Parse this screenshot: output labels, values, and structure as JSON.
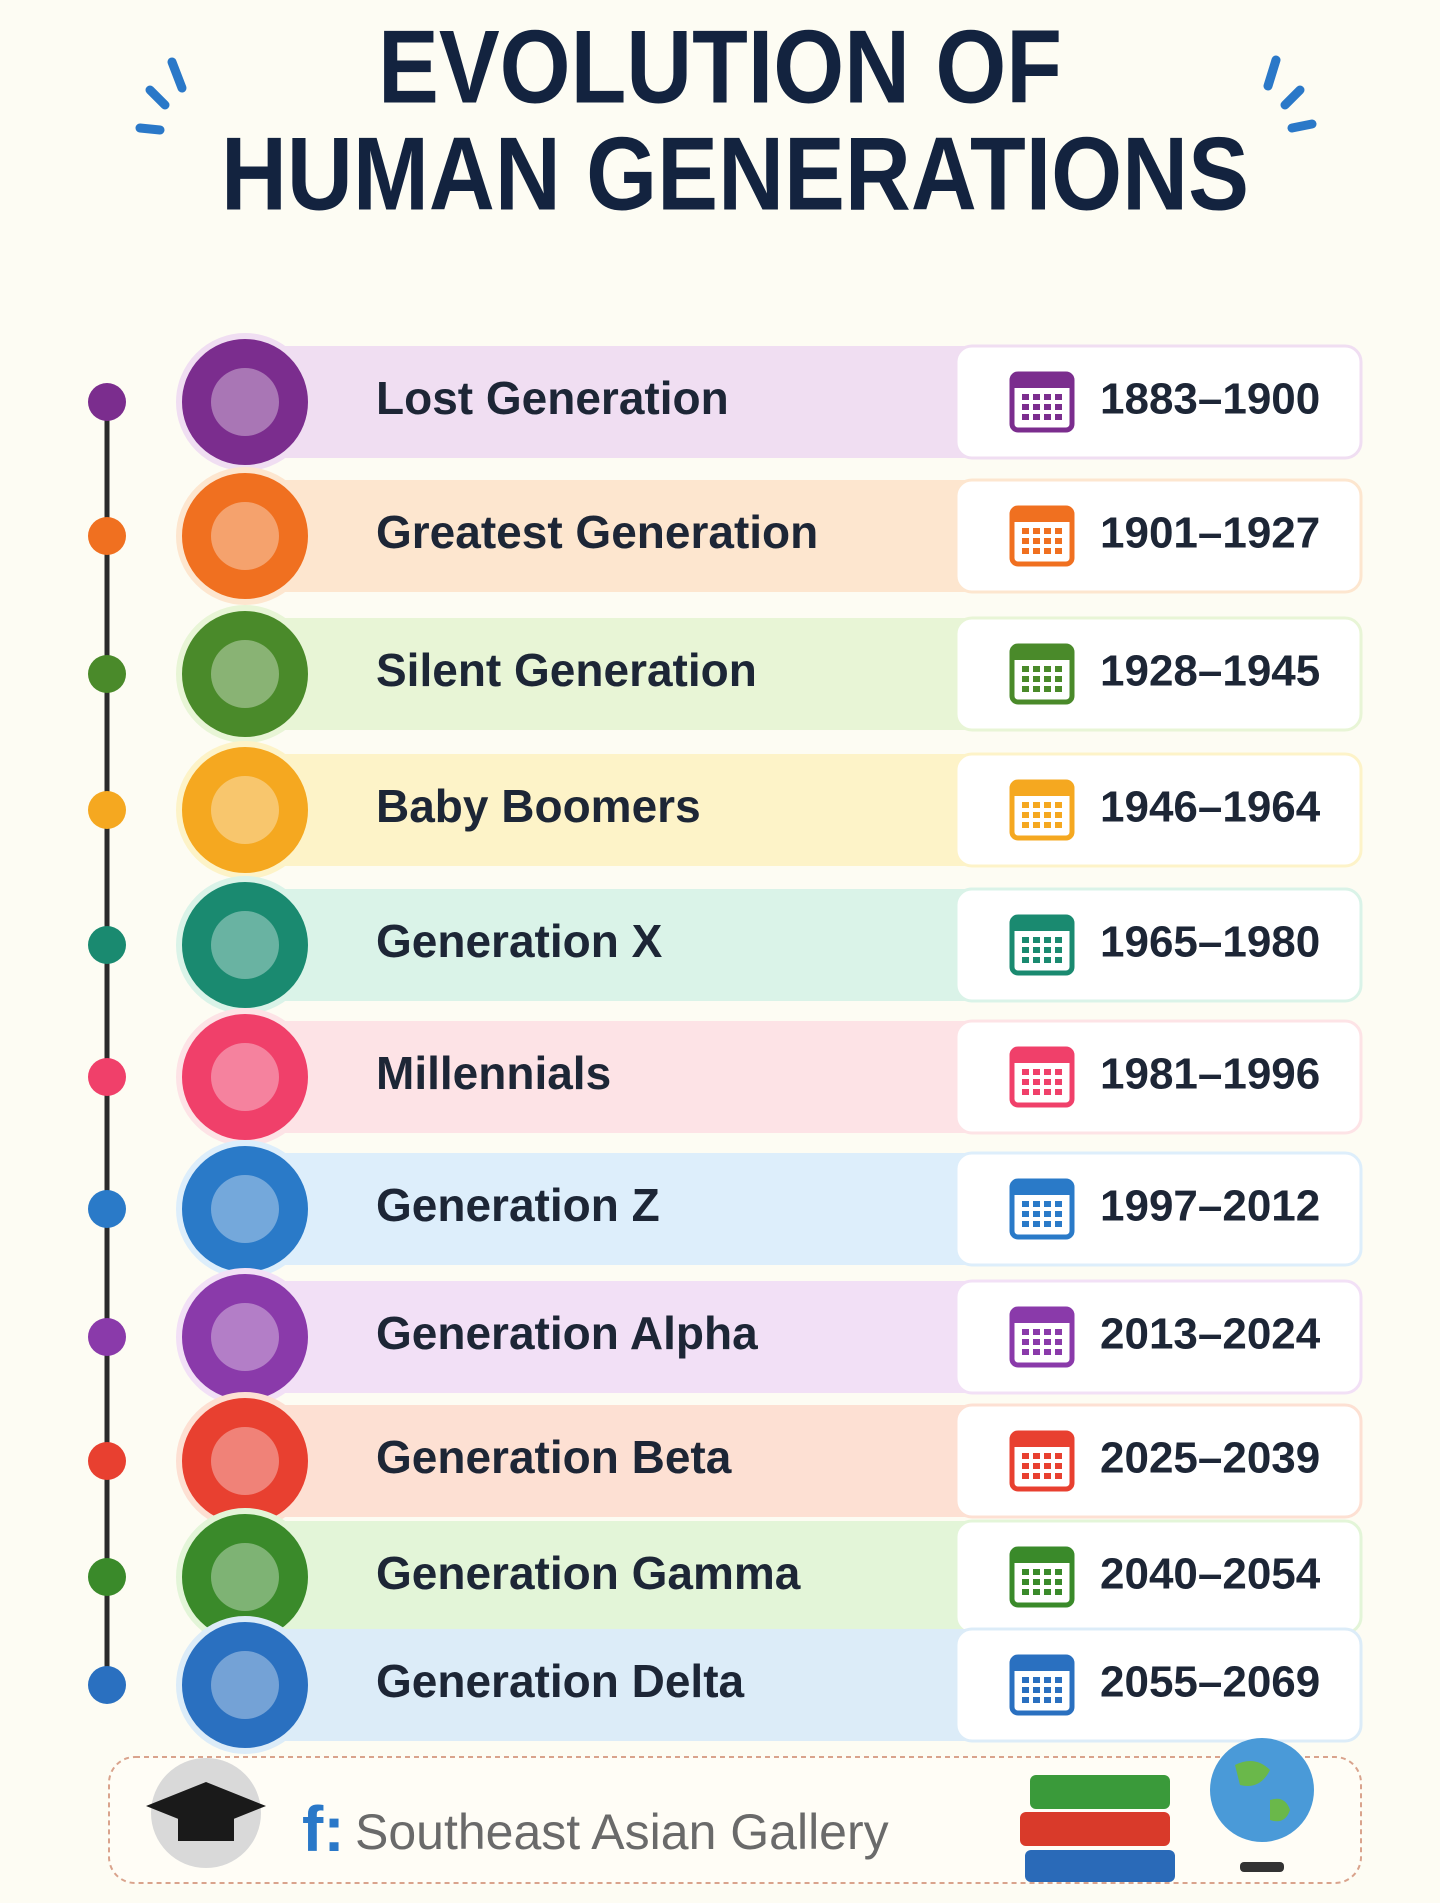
{
  "header": {
    "title": [
      "EVOLUTION OF",
      "HUMAN GENERATIONS"
    ]
  },
  "generations": [
    {
      "name": "Lost Generation",
      "years": "1883–1900"
    },
    {
      "name": "Greatest Generation",
      "years": "1901–1927"
    },
    {
      "name": "Silent Generation",
      "years": "1928–1945"
    },
    {
      "name": "Baby Boomers",
      "years": "1946–1964"
    },
    {
      "name": "Generation X",
      "years": "1965–1980"
    },
    {
      "name": "Millennials",
      "years": "1981–1996"
    },
    {
      "name": "Generation Z",
      "years": "1997–2012"
    },
    {
      "name": "Generation Alpha",
      "years": "2013–2024"
    },
    {
      "name": "Generation Beta",
      "years": "2025–2039"
    },
    {
      "name": "Generation Gamma",
      "years": "2040–2054"
    },
    {
      "name": "Generation Delta",
      "years": "2055–2069"
    }
  ],
  "footer": {
    "prefix": "f:",
    "text": "Southeast Asian Gallery"
  }
}
